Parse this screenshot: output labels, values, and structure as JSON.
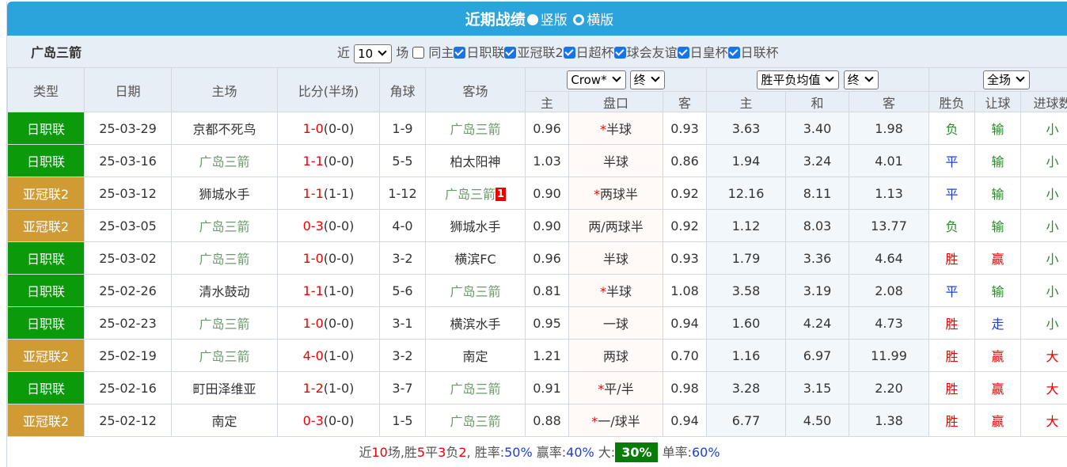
{
  "header": {
    "title": "近期战绩",
    "views": [
      {
        "label": "竖版",
        "selected": true
      },
      {
        "label": "横版",
        "selected": false
      }
    ]
  },
  "toolbar": {
    "team": "广岛三箭",
    "recent_prefix": "近",
    "recent_count": "10",
    "recent_suffix": "场",
    "filters": [
      {
        "label": "同主",
        "checked": false
      },
      {
        "label": "日职联",
        "checked": true
      },
      {
        "label": "亚冠联2",
        "checked": true
      },
      {
        "label": "日超杯",
        "checked": true
      },
      {
        "label": "球会友谊",
        "checked": true
      },
      {
        "label": "日皇杯",
        "checked": true
      },
      {
        "label": "日联杯",
        "checked": true
      }
    ]
  },
  "table": {
    "columns": [
      "类型",
      "日期",
      "主场",
      "比分(半场)",
      "角球",
      "客场"
    ],
    "selects": {
      "handicap_company": "Crow*",
      "handicap_time": "终",
      "odds_type": "胜平负均值",
      "odds_time": "终",
      "period": "全场"
    },
    "subheaders": [
      "主",
      "盘口",
      "客",
      "主",
      "和",
      "客",
      "胜负",
      "让球",
      "进球数"
    ],
    "rows": [
      {
        "league": "日职联",
        "league_color": "#0a9a0a",
        "date": "25-03-29",
        "home": "京都不死鸟",
        "score": "1-0",
        "half": "(0-0)",
        "corners": "1-9",
        "away": "广岛三箭",
        "h_odds": "0.96",
        "handicap_mark": "*",
        "handicap": "半球",
        "a_odds": "0.93",
        "win": "3.63",
        "draw": "3.40",
        "loss": "1.98",
        "result": "负",
        "hc_result": "输",
        "goals": "小"
      },
      {
        "league": "日职联",
        "league_color": "#0a9a0a",
        "date": "25-03-16",
        "home": "广岛三箭",
        "score": "1-1",
        "half": "(0-0)",
        "corners": "5-5",
        "away": "柏太阳神",
        "h_odds": "1.03",
        "handicap": "半球",
        "a_odds": "0.86",
        "win": "1.94",
        "draw": "3.24",
        "loss": "4.01",
        "result": "平",
        "hc_result": "输",
        "goals": "小"
      },
      {
        "league": "亚冠联2",
        "league_color": "#d09b33",
        "date": "25-03-12",
        "home": "狮城水手",
        "score": "1-1",
        "half": "(1-1)",
        "corners": "1-12",
        "away": "广岛三箭",
        "away_badge": "1",
        "h_odds": "0.90",
        "handicap_mark": "*",
        "handicap": "两球半",
        "a_odds": "0.92",
        "win": "12.16",
        "draw": "8.11",
        "loss": "1.13",
        "result": "平",
        "hc_result": "输",
        "goals": "小"
      },
      {
        "league": "亚冠联2",
        "league_color": "#d09b33",
        "date": "25-03-05",
        "home": "广岛三箭",
        "score": "0-3",
        "half": "(0-0)",
        "corners": "4-0",
        "away": "狮城水手",
        "h_odds": "0.90",
        "handicap": "两/两球半",
        "a_odds": "0.92",
        "win": "1.12",
        "draw": "8.03",
        "loss": "13.77",
        "result": "负",
        "hc_result": "输",
        "goals": "小"
      },
      {
        "league": "日职联",
        "league_color": "#0a9a0a",
        "date": "25-03-02",
        "home": "广岛三箭",
        "score": "1-0",
        "half": "(0-0)",
        "corners": "3-2",
        "away": "横滨FC",
        "h_odds": "0.96",
        "handicap": "半球",
        "a_odds": "0.93",
        "win": "1.79",
        "draw": "3.36",
        "loss": "4.64",
        "result": "胜",
        "hc_result": "赢",
        "goals": "小"
      },
      {
        "league": "日职联",
        "league_color": "#0a9a0a",
        "date": "25-02-26",
        "home": "清水鼓动",
        "score": "1-1",
        "half": "(1-0)",
        "corners": "5-6",
        "away": "广岛三箭",
        "h_odds": "0.81",
        "handicap_mark": "*",
        "handicap": "半球",
        "a_odds": "1.08",
        "win": "3.58",
        "draw": "3.19",
        "loss": "2.08",
        "result": "平",
        "hc_result": "输",
        "goals": "小"
      },
      {
        "league": "日职联",
        "league_color": "#0a9a0a",
        "date": "25-02-23",
        "home": "广岛三箭",
        "score": "1-0",
        "half": "(0-0)",
        "corners": "3-1",
        "away": "横滨水手",
        "h_odds": "0.95",
        "handicap": "一球",
        "a_odds": "0.94",
        "win": "1.60",
        "draw": "4.24",
        "loss": "4.73",
        "result": "胜",
        "hc_result": "走",
        "goals": "小"
      },
      {
        "league": "亚冠联2",
        "league_color": "#d09b33",
        "date": "25-02-19",
        "home": "广岛三箭",
        "score": "4-0",
        "half": "(1-0)",
        "corners": "3-2",
        "away": "南定",
        "h_odds": "1.21",
        "handicap": "两球",
        "a_odds": "0.70",
        "win": "1.16",
        "draw": "6.97",
        "loss": "11.99",
        "result": "胜",
        "hc_result": "赢",
        "goals": "大"
      },
      {
        "league": "日职联",
        "league_color": "#0a9a0a",
        "date": "25-02-16",
        "home": "町田泽维亚",
        "score": "1-2",
        "half": "(1-0)",
        "corners": "3-7",
        "away": "广岛三箭",
        "h_odds": "0.91",
        "handicap_mark": "*",
        "handicap": "平/半",
        "a_odds": "0.98",
        "win": "3.28",
        "draw": "3.15",
        "loss": "2.20",
        "result": "胜",
        "hc_result": "赢",
        "goals": "大"
      },
      {
        "league": "亚冠联2",
        "league_color": "#d09b33",
        "date": "25-02-12",
        "home": "南定",
        "score": "0-3",
        "half": "(0-0)",
        "corners": "1-5",
        "away": "广岛三箭",
        "h_odds": "0.88",
        "handicap_mark": "*",
        "handicap": "一/球半",
        "a_odds": "0.94",
        "win": "6.77",
        "draw": "4.50",
        "loss": "1.38",
        "result": "胜",
        "hc_result": "赢",
        "goals": "大"
      }
    ]
  },
  "footer": {
    "p1": "近",
    "count": "10",
    "p2": "场,胜",
    "wins": "5",
    "p3": "平",
    "draws": "3",
    "p4": "负",
    "losses": "2",
    "p5": ", 胜率:",
    "win_rate": "50%",
    "p6": " 赢率:",
    "cover_rate": "40%",
    "p7": " 大:",
    "over_rate": "30%",
    "p8": " 单率:",
    "odd_rate": "60%"
  }
}
